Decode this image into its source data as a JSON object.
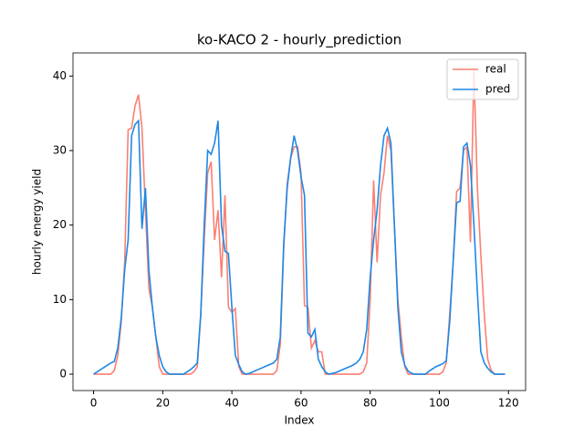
{
  "chart_data": {
    "type": "line",
    "title": "ko-KACO 2 - hourly_prediction",
    "x_label": "Index",
    "y_label": "hourly energy yield",
    "x": [
      0,
      1,
      2,
      3,
      4,
      5,
      6,
      7,
      8,
      9,
      10,
      11,
      12,
      13,
      14,
      15,
      16,
      17,
      18,
      19,
      20,
      21,
      22,
      23,
      24,
      25,
      26,
      27,
      28,
      29,
      30,
      31,
      32,
      33,
      34,
      35,
      36,
      37,
      38,
      39,
      40,
      41,
      42,
      43,
      44,
      45,
      46,
      47,
      48,
      49,
      50,
      51,
      52,
      53,
      54,
      55,
      56,
      57,
      58,
      59,
      60,
      61,
      62,
      63,
      64,
      65,
      66,
      67,
      68,
      69,
      70,
      71,
      72,
      73,
      74,
      75,
      76,
      77,
      78,
      79,
      80,
      81,
      82,
      83,
      84,
      85,
      86,
      87,
      88,
      89,
      90,
      91,
      92,
      93,
      94,
      95,
      96,
      97,
      98,
      99,
      100,
      101,
      102,
      103,
      104,
      105,
      106,
      107,
      108,
      109,
      110,
      111,
      112,
      113,
      114,
      115,
      116,
      117,
      118,
      119
    ],
    "series": [
      {
        "name": "real",
        "color": "#fa8072",
        "values": [
          0,
          0,
          0,
          0,
          0,
          0,
          0.5,
          2.5,
          7,
          15,
          32.8,
          33,
          36,
          37.5,
          33,
          22,
          11.5,
          9,
          5,
          1,
          0,
          0,
          0,
          0,
          0,
          0,
          0,
          0,
          0,
          0.3,
          1,
          8,
          18,
          27,
          28.5,
          18,
          22,
          13,
          24,
          9,
          8.3,
          8.8,
          1,
          0,
          0,
          0,
          0,
          0,
          0,
          0,
          0,
          0,
          0,
          0.5,
          4,
          17,
          25.5,
          29,
          30.5,
          30.5,
          27,
          9.2,
          9,
          3.5,
          4.5,
          3,
          3,
          0,
          0,
          0,
          0,
          0,
          0,
          0,
          0,
          0,
          0,
          0,
          0.3,
          1.5,
          10,
          26,
          15,
          24,
          27,
          32,
          30,
          20,
          10,
          5,
          1,
          0,
          0,
          0,
          0,
          0,
          0,
          0,
          0,
          0,
          0,
          0.3,
          1.5,
          8,
          15,
          24.5,
          25,
          30,
          30.5,
          17.7,
          41,
          25,
          16,
          8,
          2,
          0.5,
          0,
          0,
          0,
          0
        ]
      },
      {
        "name": "pred",
        "color": "#1e88e5",
        "values": [
          0,
          0.3,
          0.6,
          0.9,
          1.2,
          1.5,
          1.7,
          3.5,
          7.5,
          14,
          18,
          32,
          33.5,
          34,
          19.5,
          25,
          14,
          9,
          5,
          2.5,
          1,
          0.3,
          0,
          0,
          0,
          0,
          0,
          0.3,
          0.6,
          1,
          1.5,
          8,
          20,
          30,
          29.5,
          31,
          34,
          20,
          16.5,
          16.2,
          9,
          2.5,
          1.3,
          0.3,
          0,
          0.1,
          0.3,
          0.5,
          0.7,
          0.9,
          1.1,
          1.3,
          1.5,
          2,
          5,
          17.5,
          25,
          29,
          32,
          30,
          26.5,
          24,
          5.5,
          5,
          6,
          2,
          1,
          0.3,
          0,
          0.1,
          0.2,
          0.4,
          0.6,
          0.8,
          1,
          1.2,
          1.5,
          2,
          3,
          6,
          13,
          18,
          22,
          28,
          32,
          33,
          31,
          20,
          9,
          3,
          1.2,
          0.4,
          0.1,
          0,
          0,
          0,
          0,
          0.4,
          0.7,
          1,
          1.2,
          1.4,
          1.8,
          7,
          15,
          23,
          23.2,
          30.5,
          31,
          28,
          20,
          11,
          3,
          1.5,
          0.8,
          0.3,
          0,
          0,
          0,
          0
        ]
      }
    ],
    "xlim": [
      -5.95,
      124.95
    ],
    "xticks": [
      0,
      20,
      40,
      60,
      80,
      100,
      120
    ],
    "ylim": [
      -2.2,
      43.1
    ],
    "yticks": [
      0,
      10,
      20,
      30,
      40
    ],
    "legend": "upper right"
  }
}
